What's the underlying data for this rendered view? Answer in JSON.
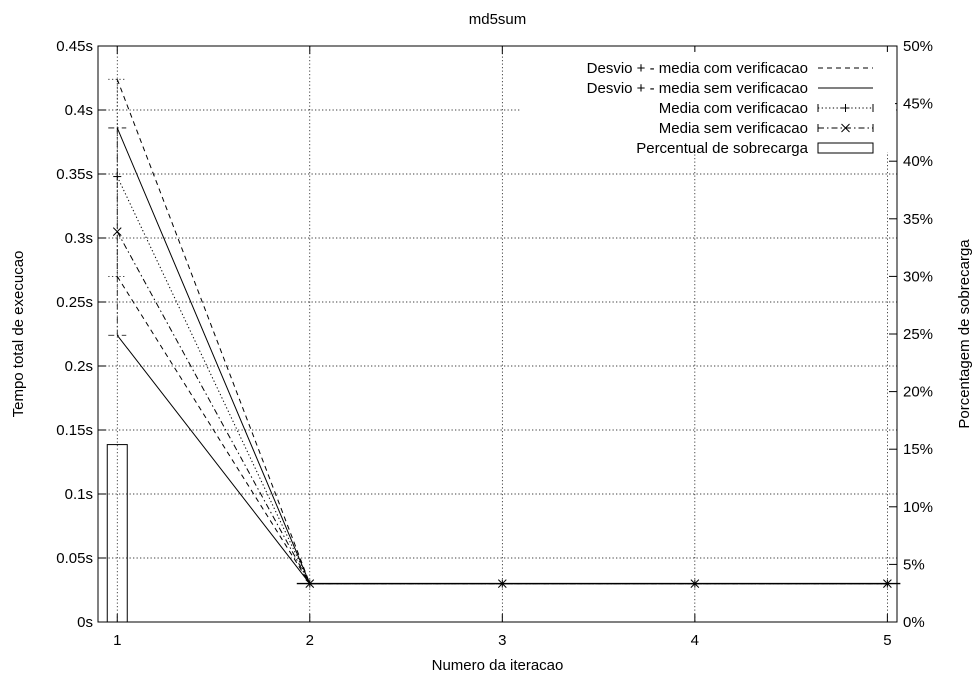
{
  "chart_data": {
    "type": "line",
    "title": "md5sum",
    "xlabel": "Numero da iteracao",
    "ylabel": "Tempo total de execucao",
    "y2label": "Porcentagem de sobrecarga",
    "x": [
      1,
      2,
      3,
      4,
      5
    ],
    "xlim": [
      0.9,
      5.05
    ],
    "ylim": [
      0,
      0.45
    ],
    "y2lim": [
      0,
      50
    ],
    "x_ticks": [
      "1",
      "2",
      "3",
      "4",
      "5"
    ],
    "y_ticks": [
      "0s",
      "0.05s",
      "0.1s",
      "0.15s",
      "0.2s",
      "0.25s",
      "0.3s",
      "0.35s",
      "0.4s",
      "0.45s"
    ],
    "y2_ticks": [
      "0%",
      "5%",
      "10%",
      "15%",
      "20%",
      "25%",
      "30%",
      "35%",
      "40%",
      "45%",
      "50%"
    ],
    "grid": true,
    "legend_position": "top-right",
    "series": [
      {
        "name": "Desvio + - media com verificacao",
        "style": "dashed",
        "upper": [
          0.424,
          0.03,
          0.03,
          0.03,
          0.03
        ],
        "lower": [
          0.27,
          0.03,
          0.03,
          0.03,
          0.03
        ]
      },
      {
        "name": "Desvio + - media sem verificacao",
        "style": "solid",
        "upper": [
          0.386,
          0.03,
          0.03,
          0.03,
          0.03
        ],
        "lower": [
          0.224,
          0.03,
          0.03,
          0.03,
          0.03
        ]
      },
      {
        "name": "Media com verificacao",
        "style": "dotted",
        "marker": "plus",
        "values": [
          0.348,
          0.03,
          0.03,
          0.03,
          0.03
        ]
      },
      {
        "name": "Media sem verificacao",
        "style": "dash-dot",
        "marker": "cross",
        "values": [
          0.305,
          0.03,
          0.03,
          0.03,
          0.03
        ]
      },
      {
        "name": "Percentual de sobrecarga",
        "style": "box",
        "axis": "y2",
        "values": [
          15.4,
          0,
          0,
          0,
          0
        ]
      }
    ]
  }
}
